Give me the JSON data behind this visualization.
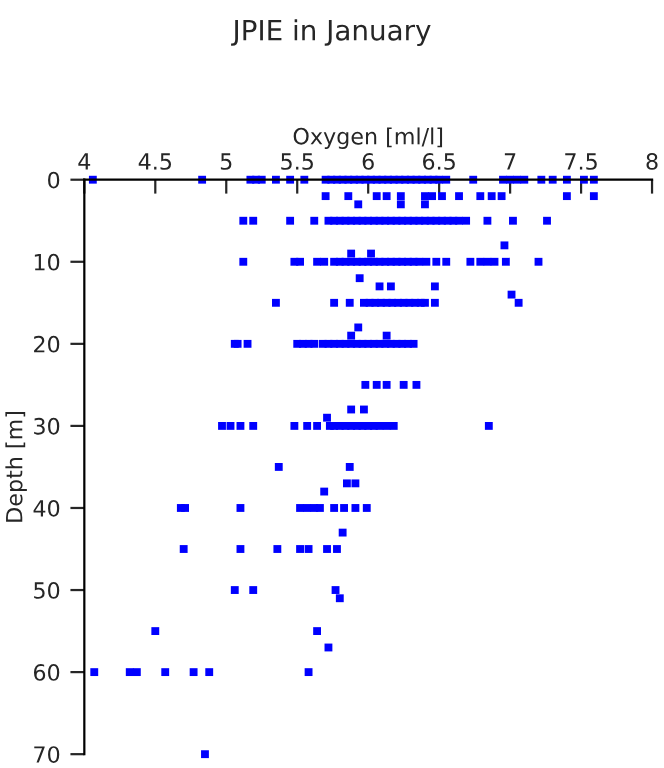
{
  "chart_data": {
    "type": "scatter",
    "title": "JPIE in January",
    "xlabel": "Oxygen [ml/l]",
    "ylabel": "Depth [m]",
    "xlim": [
      4,
      8
    ],
    "xticks": [
      4,
      4.5,
      5,
      5.5,
      6,
      6.5,
      7,
      7.5,
      8
    ],
    "ylim": [
      70,
      0
    ],
    "yticks": [
      0,
      10,
      20,
      30,
      40,
      50,
      60,
      70
    ],
    "grid": false,
    "legend": false,
    "marker": "square",
    "series": [
      {
        "color": "#0000ff",
        "x": [
          4.06,
          4.83,
          5.17,
          5.21,
          5.25,
          5.35,
          5.45,
          5.55,
          5.7,
          5.74,
          5.78,
          5.82,
          5.86,
          5.9,
          5.94,
          5.98,
          6.02,
          6.06,
          6.1,
          6.14,
          6.18,
          6.22,
          6.26,
          6.3,
          6.34,
          6.38,
          6.42,
          6.46,
          6.5,
          6.55,
          6.74,
          6.95,
          7.0,
          7.05,
          7.1,
          7.22,
          7.3,
          7.4,
          7.52,
          7.59,
          5.7,
          5.86,
          6.06,
          6.13,
          6.23,
          6.4,
          6.45,
          6.52,
          6.64,
          6.79,
          6.87,
          6.94,
          7.4,
          7.59,
          5.93,
          6.23,
          6.4,
          5.12,
          5.19,
          5.45,
          5.62,
          5.72,
          5.76,
          5.8,
          5.84,
          5.88,
          5.92,
          5.96,
          6.0,
          6.04,
          6.08,
          6.12,
          6.16,
          6.2,
          6.24,
          6.28,
          6.32,
          6.36,
          6.4,
          6.44,
          6.48,
          6.52,
          6.56,
          6.6,
          6.64,
          6.69,
          6.84,
          7.02,
          7.26,
          6.96,
          5.88,
          6.02,
          5.12,
          5.48,
          5.52,
          5.64,
          5.69,
          5.76,
          5.8,
          5.84,
          5.88,
          5.92,
          5.96,
          6.0,
          6.04,
          6.08,
          6.12,
          6.16,
          6.2,
          6.24,
          6.28,
          6.32,
          6.36,
          6.41,
          6.48,
          6.55,
          6.72,
          6.79,
          6.84,
          6.89,
          6.97,
          7.2,
          5.94,
          6.08,
          6.16,
          6.47,
          7.01,
          5.35,
          5.76,
          5.87,
          5.97,
          6.01,
          6.05,
          6.09,
          6.13,
          6.17,
          6.21,
          6.25,
          6.29,
          6.33,
          6.37,
          6.4,
          6.47,
          7.06,
          5.93,
          5.88,
          6.13,
          5.06,
          5.08,
          5.15,
          5.5,
          5.54,
          5.58,
          5.62,
          5.68,
          5.72,
          5.76,
          5.8,
          5.84,
          5.88,
          5.92,
          5.96,
          6.0,
          6.04,
          6.08,
          6.12,
          6.16,
          6.2,
          6.24,
          6.28,
          6.32,
          5.98,
          6.06,
          6.13,
          6.25,
          6.34,
          5.88,
          5.97,
          5.71,
          4.97,
          5.03,
          5.1,
          5.19,
          5.48,
          5.57,
          5.64,
          5.73,
          5.76,
          5.8,
          5.84,
          5.88,
          5.92,
          5.96,
          6.0,
          6.04,
          6.08,
          6.13,
          6.18,
          6.85,
          5.37,
          5.87,
          5.85,
          5.91,
          5.69,
          4.68,
          4.71,
          5.1,
          5.52,
          5.57,
          5.62,
          5.66,
          5.76,
          5.83,
          5.91,
          5.99,
          5.82,
          4.7,
          5.1,
          5.36,
          5.52,
          5.58,
          5.71,
          5.78,
          5.06,
          5.19,
          5.77,
          5.8,
          4.5,
          5.64,
          5.72,
          4.07,
          4.32,
          4.37,
          4.57,
          4.77,
          4.88,
          5.58,
          4.85
        ],
        "values": [
          0,
          0,
          0,
          0,
          0,
          0,
          0,
          0,
          0,
          0,
          0,
          0,
          0,
          0,
          0,
          0,
          0,
          0,
          0,
          0,
          0,
          0,
          0,
          0,
          0,
          0,
          0,
          0,
          0,
          0,
          0,
          0,
          0,
          0,
          0,
          0,
          0,
          0,
          0,
          0,
          2,
          2,
          2,
          2,
          2,
          2,
          2,
          2,
          2,
          2,
          2,
          2,
          2,
          2,
          3,
          3,
          3,
          5,
          5,
          5,
          5,
          5,
          5,
          5,
          5,
          5,
          5,
          5,
          5,
          5,
          5,
          5,
          5,
          5,
          5,
          5,
          5,
          5,
          5,
          5,
          5,
          5,
          5,
          5,
          5,
          5,
          5,
          5,
          5,
          8,
          9,
          9,
          10,
          10,
          10,
          10,
          10,
          10,
          10,
          10,
          10,
          10,
          10,
          10,
          10,
          10,
          10,
          10,
          10,
          10,
          10,
          10,
          10,
          10,
          10,
          10,
          10,
          10,
          10,
          10,
          10,
          10,
          12,
          13,
          13,
          13,
          14,
          15,
          15,
          15,
          15,
          15,
          15,
          15,
          15,
          15,
          15,
          15,
          15,
          15,
          15,
          15,
          15,
          15,
          18,
          19,
          19,
          20,
          20,
          20,
          20,
          20,
          20,
          20,
          20,
          20,
          20,
          20,
          20,
          20,
          20,
          20,
          20,
          20,
          20,
          20,
          20,
          20,
          20,
          20,
          20,
          25,
          25,
          25,
          25,
          25,
          28,
          28,
          29,
          30,
          30,
          30,
          30,
          30,
          30,
          30,
          30,
          30,
          30,
          30,
          30,
          30,
          30,
          30,
          30,
          30,
          30,
          30,
          30,
          35,
          35,
          37,
          37,
          38,
          40,
          40,
          40,
          40,
          40,
          40,
          40,
          40,
          40,
          40,
          40,
          43,
          45,
          45,
          45,
          45,
          45,
          45,
          45,
          50,
          50,
          50,
          51,
          55,
          55,
          57,
          60,
          60,
          60,
          60,
          60,
          60,
          60,
          70
        ]
      }
    ]
  }
}
